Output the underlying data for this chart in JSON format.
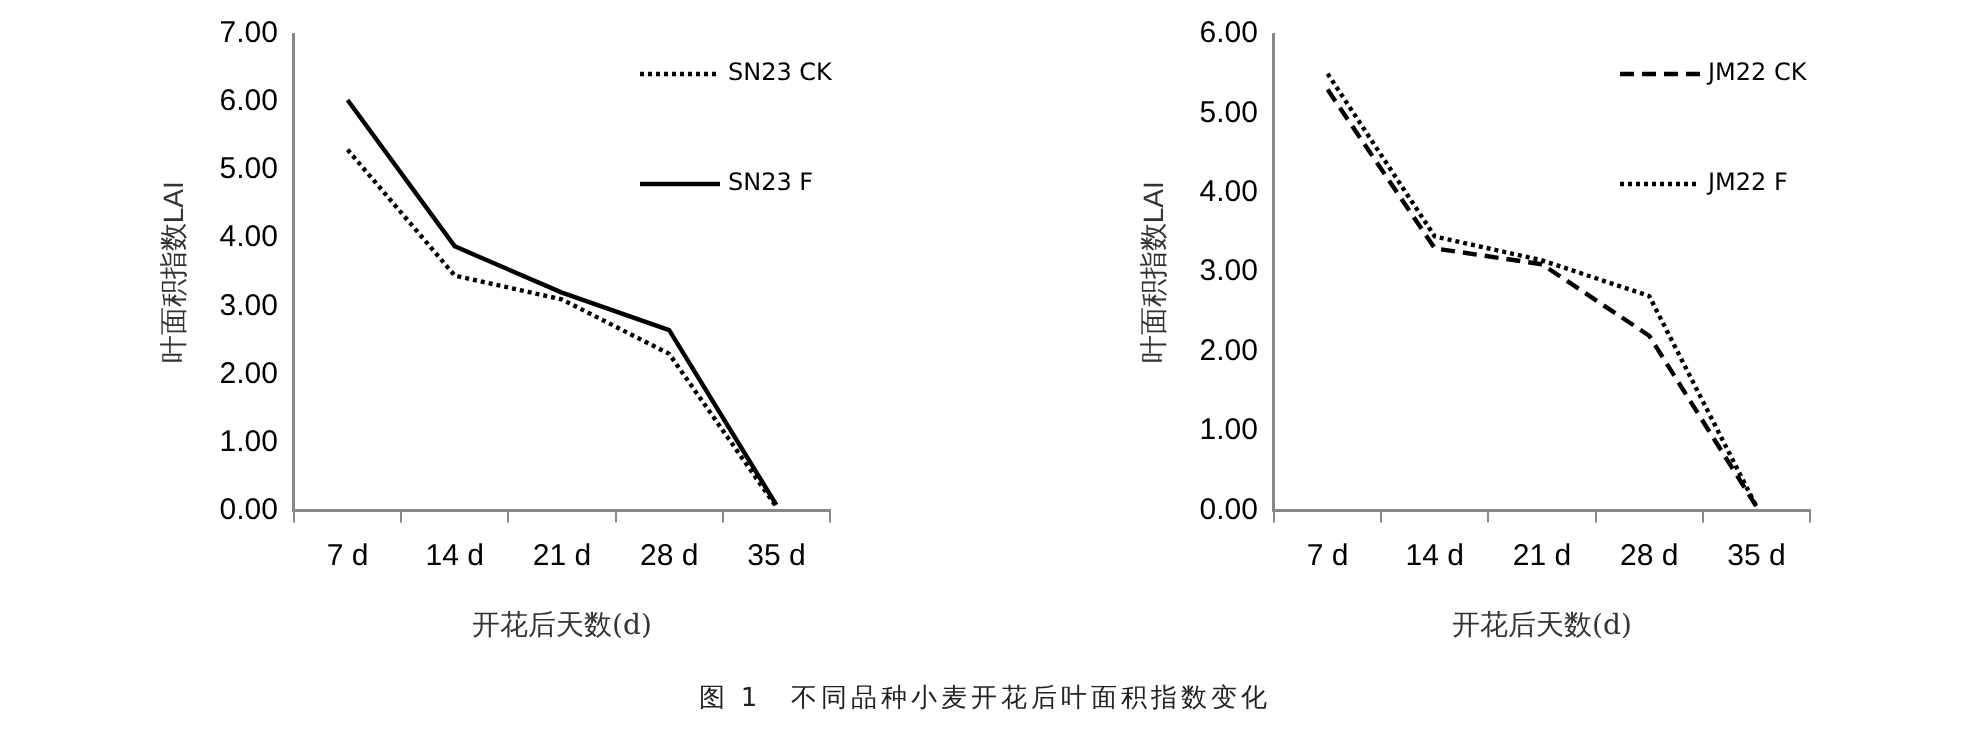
{
  "chart_data": [
    {
      "type": "line",
      "xlabel": "开花后天数(d)",
      "ylabel": "叶面积指数LAI",
      "categories": [
        "7 d",
        "14 d",
        "21 d",
        "28 d",
        "35 d"
      ],
      "series": [
        {
          "name": "SN23 CK",
          "color": "#000000",
          "line_style": "dotted",
          "values": [
            5.3,
            3.45,
            3.1,
            2.3,
            0.05
          ]
        },
        {
          "name": "SN23 F",
          "color": "#000000",
          "line_style": "solid",
          "values": [
            6.03,
            3.88,
            3.2,
            2.65,
            0.08
          ]
        }
      ],
      "ylim": [
        0,
        7
      ],
      "yticks": [
        {
          "value": 0,
          "label": "0.00"
        },
        {
          "value": 1,
          "label": "1.00"
        },
        {
          "value": 2,
          "label": "2.00"
        },
        {
          "value": 3,
          "label": "3.00"
        },
        {
          "value": 4,
          "label": "4.00"
        },
        {
          "value": 5,
          "label": "5.00"
        },
        {
          "value": 6,
          "label": "6.00"
        },
        {
          "value": 7,
          "label": "7.00"
        }
      ],
      "grid": false,
      "legend": "top right",
      "marker": "none",
      "annotations": [
        "图 1　不同品种小麦开花后叶面积指数变化"
      ]
    },
    {
      "type": "line",
      "xlabel": "开花后天数(d)",
      "ylabel": "叶面积指数LAI",
      "categories": [
        "7 d",
        "14 d",
        "21 d",
        "28 d",
        "35 d"
      ],
      "series": [
        {
          "name": "JM22 CK",
          "color": "#000000",
          "line_style": "dashed",
          "values": [
            5.3,
            3.3,
            3.1,
            2.2,
            0.05
          ]
        },
        {
          "name": "JM22 F",
          "color": "#000000",
          "line_style": "dotted",
          "values": [
            5.5,
            3.45,
            3.15,
            2.7,
            0.05
          ]
        }
      ],
      "ylim": [
        0,
        6
      ],
      "yticks": [
        {
          "value": 0,
          "label": "0.00"
        },
        {
          "value": 1,
          "label": "1.00"
        },
        {
          "value": 2,
          "label": "2.00"
        },
        {
          "value": 3,
          "label": "3.00"
        },
        {
          "value": 4,
          "label": "4.00"
        },
        {
          "value": 5,
          "label": "5.00"
        },
        {
          "value": 6,
          "label": "6.00"
        }
      ],
      "grid": false,
      "legend": "top right",
      "marker": "none"
    }
  ]
}
